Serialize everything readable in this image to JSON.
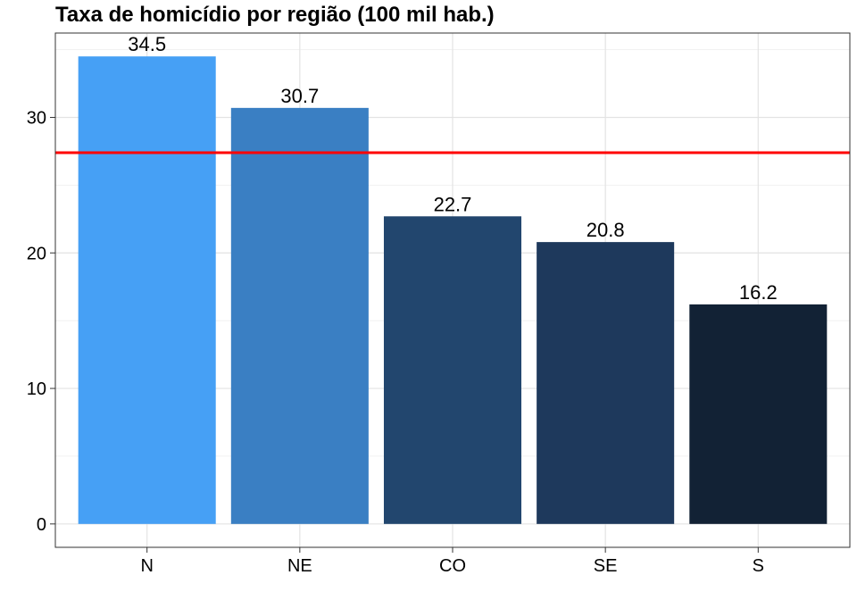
{
  "chart_data": {
    "type": "bar",
    "title": "Taxa de homicídio por região (100 mil hab.)",
    "xlabel": "",
    "ylabel": "",
    "categories": [
      "N",
      "NE",
      "CO",
      "SE",
      "S"
    ],
    "values": [
      34.5,
      30.7,
      22.7,
      20.8,
      16.2
    ],
    "value_labels": [
      "34.5",
      "30.7",
      "22.7",
      "20.8",
      "16.2"
    ],
    "bar_colors": [
      "#46A0F5",
      "#3A7FC3",
      "#22466E",
      "#1E395C",
      "#122235"
    ],
    "reference_line": {
      "value": 27.4,
      "color": "#FF0000"
    },
    "yticks": [
      0,
      10,
      20,
      30
    ],
    "ytick_labels": [
      "0",
      "10",
      "20",
      "30"
    ],
    "ylim": [
      -1.725,
      36.225
    ],
    "grid": true,
    "legend": "none"
  }
}
